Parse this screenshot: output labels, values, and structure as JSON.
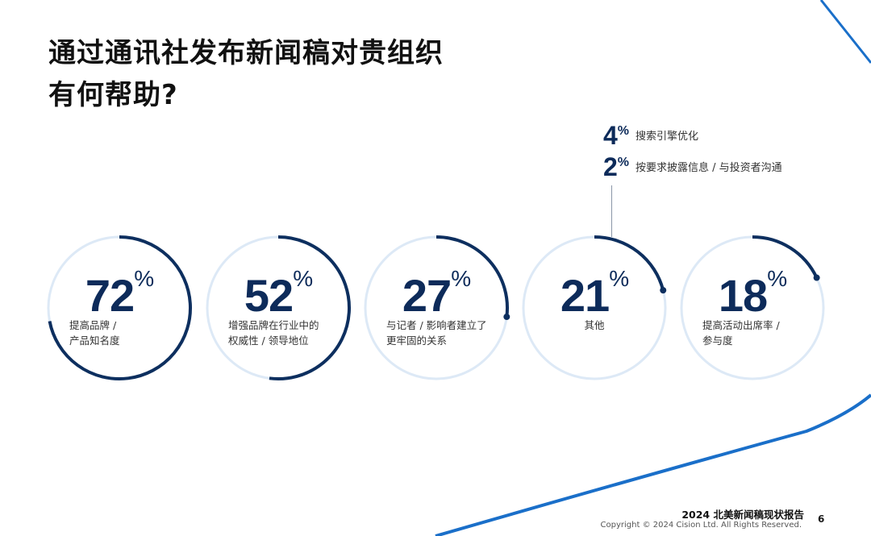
{
  "title": {
    "line1": "通过通讯社发布新闻稿对贵组织",
    "line2": "有何帮助?"
  },
  "colors": {
    "arc": "#0d2f5f",
    "track": "#dde9f6",
    "accent": "#1a6fc9"
  },
  "stats": [
    {
      "value": "72",
      "unit": "%",
      "fraction": 0.72,
      "label1": "提高品牌 /",
      "label2": "产品知名度"
    },
    {
      "value": "52",
      "unit": "%",
      "fraction": 0.52,
      "label1": "增强品牌在行业中的",
      "label2": "权威性 / 领导地位"
    },
    {
      "value": "27",
      "unit": "%",
      "fraction": 0.27,
      "label1": "与记者 / 影响者建立了",
      "label2": "更牢固的关系"
    },
    {
      "value": "21",
      "unit": "%",
      "fraction": 0.21,
      "label1": "其他",
      "label2": ""
    },
    {
      "value": "18",
      "unit": "%",
      "fraction": 0.18,
      "label1": "提高活动出席率 /",
      "label2": "参与度"
    }
  ],
  "other_breakdown": [
    {
      "value": "4",
      "unit": "%",
      "label": "搜索引擎优化"
    },
    {
      "value": "2",
      "unit": "%",
      "label": "按要求披露信息 / 与投资者沟通"
    }
  ],
  "footer": {
    "report": "2024 北美新闻稿现状报告",
    "copyright": "Copyright © 2024 Cision Ltd. All Rights Reserved.",
    "page": "6"
  }
}
